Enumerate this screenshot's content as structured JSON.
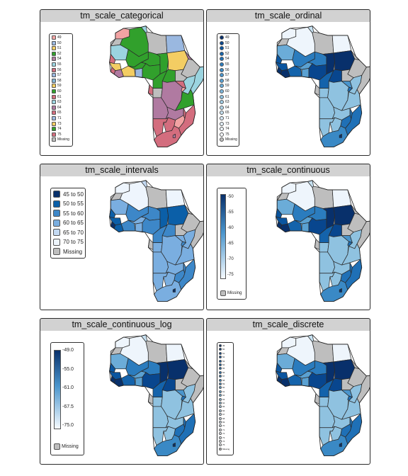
{
  "panels": [
    {
      "title": "tm_scale_categorical",
      "legend": {
        "type": "categorical",
        "items": [
          {
            "label": "49",
            "color": "#f2a3a3"
          },
          {
            "label": "50",
            "color": "#9ab8e0"
          },
          {
            "label": "51",
            "color": "#f3cd63"
          },
          {
            "label": "52",
            "color": "#31a02c"
          },
          {
            "label": "54",
            "color": "#b07aa1"
          },
          {
            "label": "55",
            "color": "#9bd4e0"
          },
          {
            "label": "56",
            "color": "#d36d7e"
          },
          {
            "label": "57",
            "color": "#9ab8e0"
          },
          {
            "label": "58",
            "color": "#80b1d3"
          },
          {
            "label": "59",
            "color": "#f3cd63"
          },
          {
            "label": "60",
            "color": "#31a02c"
          },
          {
            "label": "61",
            "color": "#d36d7e"
          },
          {
            "label": "63",
            "color": "#9bd4e0"
          },
          {
            "label": "64",
            "color": "#b07aa1"
          },
          {
            "label": "65",
            "color": "#d36d7e"
          },
          {
            "label": "71",
            "color": "#9ab8e0"
          },
          {
            "label": "73",
            "color": "#f3cd63"
          },
          {
            "label": "74",
            "color": "#31a02c"
          },
          {
            "label": "75",
            "color": "#d36d7e"
          },
          {
            "label": "Missing",
            "color": "#bebebe"
          }
        ]
      }
    },
    {
      "title": "tm_scale_ordinal",
      "legend": {
        "type": "ordinal",
        "items": [
          {
            "label": "49",
            "color": "#08306b"
          },
          {
            "label": "50",
            "color": "#08468e"
          },
          {
            "label": "51",
            "color": "#0a559f"
          },
          {
            "label": "52",
            "color": "#1463ab"
          },
          {
            "label": "54",
            "color": "#1f70b6"
          },
          {
            "label": "55",
            "color": "#2b7cbe"
          },
          {
            "label": "56",
            "color": "#3a89c5"
          },
          {
            "label": "57",
            "color": "#4a95cc"
          },
          {
            "label": "58",
            "color": "#5aa1d2"
          },
          {
            "label": "59",
            "color": "#6bacd8"
          },
          {
            "label": "60",
            "color": "#7db7dc"
          },
          {
            "label": "61",
            "color": "#8fc2e0"
          },
          {
            "label": "63",
            "color": "#a1cce4"
          },
          {
            "label": "64",
            "color": "#b4d6e9"
          },
          {
            "label": "65",
            "color": "#c5dfef"
          },
          {
            "label": "71",
            "color": "#d6e7f4"
          },
          {
            "label": "73",
            "color": "#e4f0f9"
          },
          {
            "label": "74",
            "color": "#eef5fc"
          },
          {
            "label": "75",
            "color": "#f7fbff"
          },
          {
            "label": "Missing",
            "color": "#bebebe"
          }
        ]
      }
    },
    {
      "title": "tm_scale_intervals",
      "legend": {
        "type": "intervals",
        "items": [
          {
            "label": "45 to 50",
            "color": "#08306b"
          },
          {
            "label": "50 to 55",
            "color": "#0b5fa8"
          },
          {
            "label": "55 to 60",
            "color": "#3d87c8"
          },
          {
            "label": "60 to 65",
            "color": "#7aaee0"
          },
          {
            "label": "65 to 70",
            "color": "#c3d9f2"
          },
          {
            "label": "70 to 75",
            "color": "#eef5fd"
          },
          {
            "label": "Missing",
            "color": "#bebebe"
          }
        ]
      }
    },
    {
      "title": "tm_scale_continuous",
      "legend": {
        "type": "continuous",
        "ticks": [
          "50",
          "55",
          "60",
          "65",
          "70",
          "75"
        ],
        "color_low": "#08306b",
        "color_high": "#f7fbff",
        "missing": "Missing",
        "missing_color": "#bebebe"
      }
    },
    {
      "title": "tm_scale_continuous_log",
      "legend": {
        "type": "continuous",
        "ticks": [
          "49.0",
          "55.0",
          "61.0",
          "67.5",
          "75.0"
        ],
        "color_low": "#08306b",
        "color_high": "#f7fbff",
        "missing": "Missing",
        "missing_color": "#bebebe"
      }
    },
    {
      "title": "tm_scale_discrete",
      "legend": {
        "type": "discrete",
        "items": [
          {
            "label": "49",
            "color": "#08306b"
          },
          {
            "label": "50",
            "color": "#083b7c"
          },
          {
            "label": "51",
            "color": "#08468e"
          },
          {
            "label": "52",
            "color": "#0a519c"
          },
          {
            "label": "53",
            "color": "#0d5aa4"
          },
          {
            "label": "54",
            "color": "#1463ab"
          },
          {
            "label": "55",
            "color": "#1c6cb2"
          },
          {
            "label": "56",
            "color": "#2575b9"
          },
          {
            "label": "57",
            "color": "#2f7ec0"
          },
          {
            "label": "58",
            "color": "#3a89c5"
          },
          {
            "label": "59",
            "color": "#4793ca"
          },
          {
            "label": "60",
            "color": "#559dcf"
          },
          {
            "label": "61",
            "color": "#63a7d5"
          },
          {
            "label": "62",
            "color": "#72b1da"
          },
          {
            "label": "63",
            "color": "#82bade"
          },
          {
            "label": "64",
            "color": "#93c3e1"
          },
          {
            "label": "65",
            "color": "#a4cce5"
          },
          {
            "label": "66",
            "color": "#b3d4ea"
          },
          {
            "label": "67",
            "color": "#c2dcee"
          },
          {
            "label": "68",
            "color": "#cfe3f2"
          },
          {
            "label": "69",
            "color": "#d9e9f5"
          },
          {
            "label": "70",
            "color": "#e1eef8"
          },
          {
            "label": "71",
            "color": "#e8f2fa"
          },
          {
            "label": "72",
            "color": "#eef5fc"
          },
          {
            "label": "73",
            "color": "#f2f8fd"
          },
          {
            "label": "74",
            "color": "#f5fafe"
          },
          {
            "label": "75",
            "color": "#f7fbff"
          },
          {
            "label": "Missing",
            "color": "#bebebe"
          }
        ]
      }
    }
  ],
  "map_fills": {
    "categorical": {
      "morocco": "#f2a3a3",
      "algeria": "#31a02c",
      "tunisia": "#9bd4e0",
      "libya": "#bebebe",
      "egypt": "#9ab8e0",
      "w_sahara": "#bebebe",
      "mauritania": "#9bd4e0",
      "mali": "#31a02c",
      "niger": "#31a02c",
      "chad": "#31a02c",
      "sudan": "#f3cd63",
      "eritrea": "#b07aa1",
      "ethiopia": "#bebebe",
      "somalia": "#9bd4e0",
      "senegal": "#d36d7e",
      "guinea": "#f3cd63",
      "sierra_leone": "#d36d7e",
      "liberia": "#b07aa1",
      "ivory_coast": "#f3cd63",
      "burkina": "#31a02c",
      "ghana": "#9ab8e0",
      "nigeria": "#31a02c",
      "cameroon": "#31a02c",
      "car": "#31a02c",
      "s_sudan": "#bebebe",
      "gabon": "#d36d7e",
      "congo": "#bebebe",
      "drc": "#b07aa1",
      "uganda": "#d36d7e",
      "kenya": "#9bd4e0",
      "tanzania": "#31a02c",
      "angola": "#b07aa1",
      "zambia": "#b07aa1",
      "malawi": "#d36d7e",
      "mozambique": "#d36d7e",
      "namibia": "#d36d7e",
      "botswana": "#d36d7e",
      "zimbabwe": "#f2a3a3",
      "south_africa": "#d36d7e",
      "madagascar": "#bebebe",
      "lesotho": "#b07aa1",
      "rwanda": "#f2a3a3"
    },
    "ordinal": {
      "morocco": "#eef5fc",
      "algeria": "#eef5fc",
      "tunisia": "#c5dfef",
      "libya": "#bebebe",
      "egypt": "#eef5fc",
      "w_sahara": "#bebebe",
      "mauritania": "#6bacd8",
      "mali": "#2b7cbe",
      "niger": "#2b7cbe",
      "chad": "#08306b",
      "sudan": "#08306b",
      "eritrea": "#bebebe",
      "ethiopia": "#bebebe",
      "somalia": "#bebebe",
      "senegal": "#0a559f",
      "guinea": "#0a559f",
      "sierra_leone": "#08306b",
      "liberia": "#08306b",
      "ivory_coast": "#1463ab",
      "burkina": "#5aa1d2",
      "ghana": "#5aa1d2",
      "nigeria": "#08468e",
      "cameroon": "#1463ab",
      "car": "#08468e",
      "s_sudan": "#bebebe",
      "gabon": "#bebebe",
      "congo": "#8fc2e0",
      "drc": "#8fc2e0",
      "uganda": "#4a95cc",
      "kenya": "#8fc2e0",
      "tanzania": "#8fc2e0",
      "angola": "#8fc2e0",
      "zambia": "#8fc2e0",
      "malawi": "#1f70b6",
      "mozambique": "#1f70b6",
      "namibia": "#8fc2e0",
      "botswana": "#8fc2e0",
      "zimbabwe": "#1f70b6",
      "south_africa": "#3a89c5",
      "madagascar": "#bebebe",
      "lesotho": "#08306b",
      "rwanda": "#1f70b6"
    },
    "intervals": {
      "morocco": "#eef5fd",
      "algeria": "#eef5fd",
      "tunisia": "#c3d9f2",
      "libya": "#bebebe",
      "egypt": "#eef5fd",
      "w_sahara": "#bebebe",
      "mauritania": "#7aaee0",
      "mali": "#3d87c8",
      "niger": "#3d87c8",
      "chad": "#0b5fa8",
      "sudan": "#0b5fa8",
      "eritrea": "#bebebe",
      "ethiopia": "#bebebe",
      "somalia": "#bebebe",
      "senegal": "#0b5fa8",
      "guinea": "#0b5fa8",
      "sierra_leone": "#08306b",
      "liberia": "#0b5fa8",
      "ivory_coast": "#3d87c8",
      "burkina": "#7aaee0",
      "ghana": "#7aaee0",
      "nigeria": "#3d87c8",
      "cameroon": "#3d87c8",
      "car": "#3d87c8",
      "s_sudan": "#bebebe",
      "gabon": "#bebebe",
      "congo": "#7aaee0",
      "drc": "#7aaee0",
      "uganda": "#7aaee0",
      "kenya": "#7aaee0",
      "tanzania": "#7aaee0",
      "angola": "#7aaee0",
      "zambia": "#7aaee0",
      "malawi": "#3d87c8",
      "mozambique": "#3d87c8",
      "namibia": "#7aaee0",
      "botswana": "#7aaee0",
      "zimbabwe": "#3d87c8",
      "south_africa": "#7aaee0",
      "madagascar": "#bebebe",
      "lesotho": "#08306b",
      "rwanda": "#3d87c8"
    },
    "continuous": {
      "morocco": "#eef5fc",
      "algeria": "#eef5fc",
      "tunisia": "#c5dfef",
      "libya": "#bebebe",
      "egypt": "#eef5fc",
      "w_sahara": "#bebebe",
      "mauritania": "#6bacd8",
      "mali": "#2b7cbe",
      "niger": "#2b7cbe",
      "chad": "#08306b",
      "sudan": "#08306b",
      "eritrea": "#bebebe",
      "ethiopia": "#bebebe",
      "somalia": "#bebebe",
      "senegal": "#0a559f",
      "guinea": "#0a559f",
      "sierra_leone": "#08306b",
      "liberia": "#08306b",
      "ivory_coast": "#1463ab",
      "burkina": "#5aa1d2",
      "ghana": "#5aa1d2",
      "nigeria": "#08468e",
      "cameroon": "#1463ab",
      "car": "#08468e",
      "s_sudan": "#bebebe",
      "gabon": "#bebebe",
      "congo": "#8fc2e0",
      "drc": "#8fc2e0",
      "uganda": "#4a95cc",
      "kenya": "#8fc2e0",
      "tanzania": "#8fc2e0",
      "angola": "#8fc2e0",
      "zambia": "#8fc2e0",
      "malawi": "#1f70b6",
      "mozambique": "#1f70b6",
      "namibia": "#8fc2e0",
      "botswana": "#8fc2e0",
      "zimbabwe": "#1f70b6",
      "south_africa": "#3a89c5",
      "madagascar": "#bebebe",
      "lesotho": "#08306b",
      "rwanda": "#1f70b6"
    }
  }
}
